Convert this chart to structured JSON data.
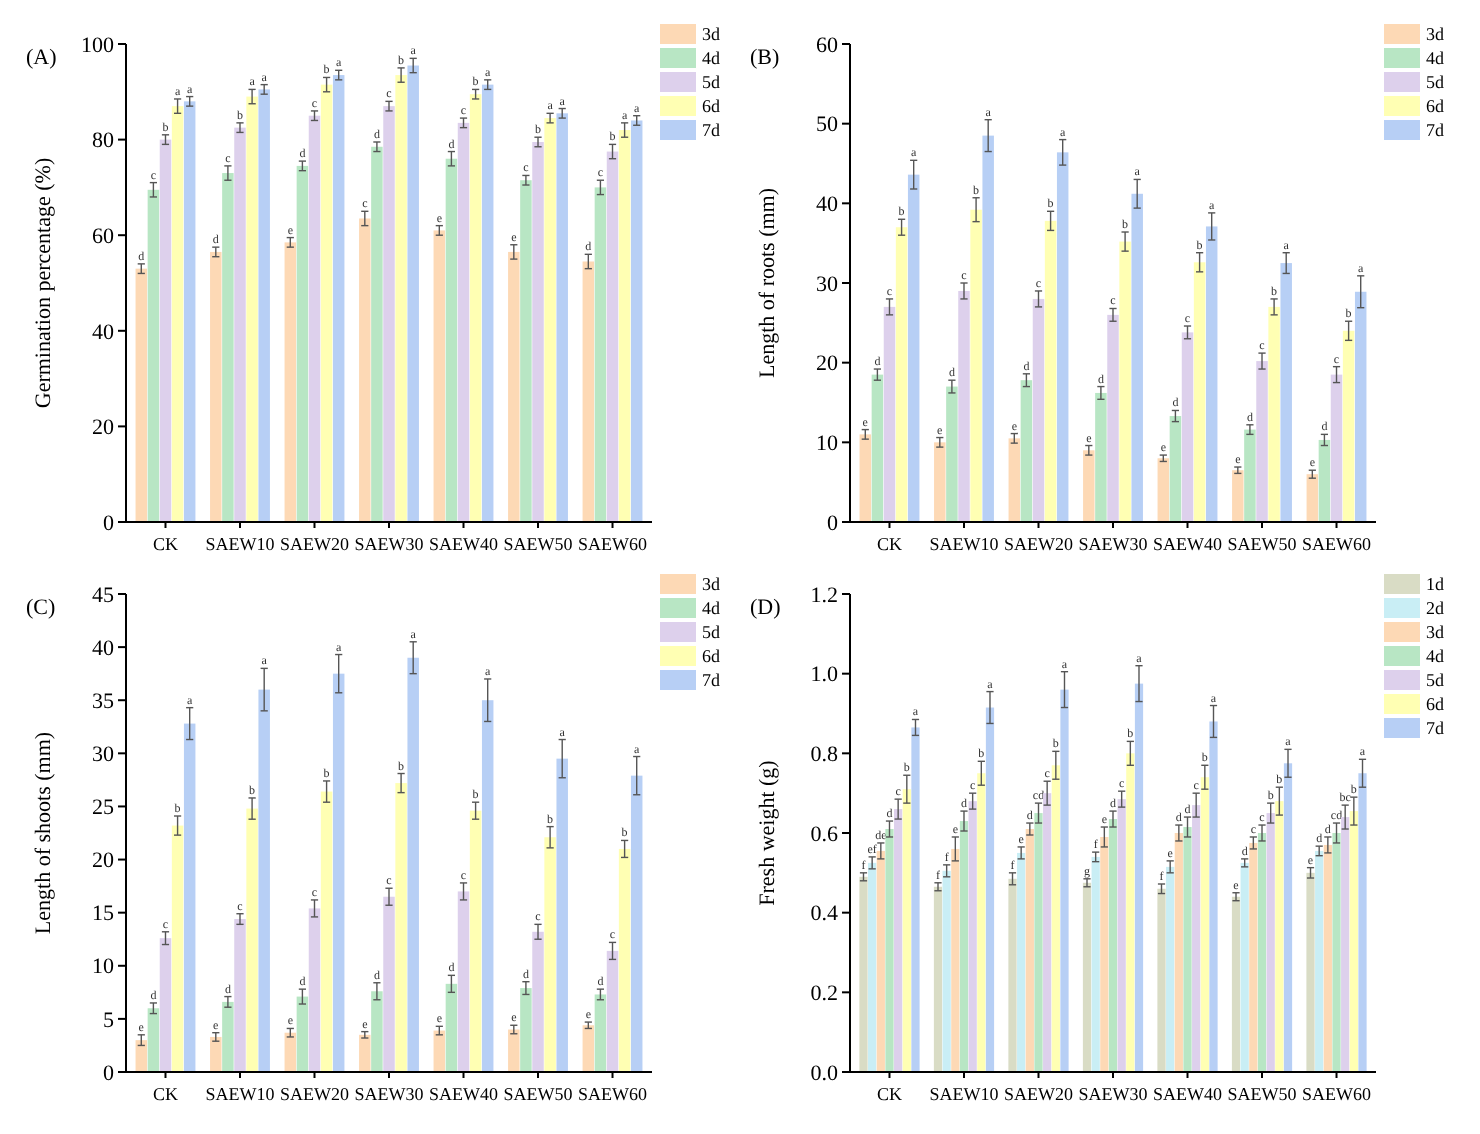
{
  "chart_data": [
    {
      "type": "bar",
      "title": "(A)",
      "ylabel": "Germination percentage (%)",
      "categories": [
        "CK",
        "SAEW10",
        "SAEW20",
        "SAEW30",
        "SAEW40",
        "SAEW50",
        "SAEW60"
      ],
      "ylim": [
        0,
        100
      ],
      "yticks": [
        0,
        20,
        40,
        60,
        80,
        100
      ],
      "legend": "top right",
      "series": [
        {
          "name": "3d",
          "color": "#fdd9b5",
          "values": [
            53,
            56.5,
            58.5,
            63.5,
            61,
            56.5,
            54.5
          ],
          "errors": [
            1,
            1,
            1,
            1.5,
            1,
            1.5,
            1.5
          ],
          "value_labels": [
            "d",
            "d",
            "e",
            "c",
            "e",
            "e",
            "d"
          ]
        },
        {
          "name": "4d",
          "color": "#b8e6c4",
          "values": [
            69.5,
            73,
            74.5,
            78.5,
            76,
            71.5,
            70
          ],
          "errors": [
            1.5,
            1.5,
            1,
            1,
            1.5,
            1,
            1.5
          ],
          "value_labels": [
            "c",
            "c",
            "d",
            "d",
            "d",
            "c",
            "c"
          ]
        },
        {
          "name": "5d",
          "color": "#ddd0ec",
          "values": [
            80,
            82.5,
            85,
            87,
            83.5,
            79.5,
            77.5
          ],
          "errors": [
            1,
            1,
            1,
            1,
            1,
            1,
            1.5
          ],
          "value_labels": [
            "b",
            "b",
            "c",
            "c",
            "c",
            "b",
            "b"
          ]
        },
        {
          "name": "6d",
          "color": "#ffffb3",
          "values": [
            87,
            89,
            91.5,
            93.5,
            89.5,
            84.5,
            82
          ],
          "errors": [
            1.5,
            1.5,
            1.5,
            1.5,
            1,
            1,
            1.5
          ],
          "value_labels": [
            "a",
            "a",
            "b",
            "b",
            "b",
            "a",
            "a"
          ]
        },
        {
          "name": "7d",
          "color": "#b7cff5",
          "values": [
            88,
            90.5,
            93.5,
            95.5,
            91.5,
            85.5,
            84
          ],
          "errors": [
            1,
            1,
            1,
            1.5,
            1,
            1,
            1
          ],
          "value_labels": [
            "a",
            "a",
            "a",
            "a",
            "a",
            "a",
            "a"
          ]
        }
      ]
    },
    {
      "type": "bar",
      "title": "(B)",
      "ylabel": "Length of roots (mm)",
      "categories": [
        "CK",
        "SAEW10",
        "SAEW20",
        "SAEW30",
        "SAEW40",
        "SAEW50",
        "SAEW60"
      ],
      "ylim": [
        0,
        60
      ],
      "yticks": [
        0,
        10,
        20,
        30,
        40,
        50,
        60
      ],
      "legend": "top right",
      "series": [
        {
          "name": "3d",
          "color": "#fdd9b5",
          "values": [
            11,
            10,
            10.5,
            9,
            8,
            6.5,
            6
          ],
          "errors": [
            0.6,
            0.6,
            0.6,
            0.6,
            0.4,
            0.4,
            0.5
          ],
          "value_labels": [
            "e",
            "e",
            "e",
            "e",
            "e",
            "e",
            "e"
          ]
        },
        {
          "name": "4d",
          "color": "#b8e6c4",
          "values": [
            18.5,
            17,
            17.8,
            16.2,
            13.3,
            11.6,
            10.3
          ],
          "errors": [
            0.7,
            0.8,
            0.8,
            0.8,
            0.7,
            0.6,
            0.7
          ],
          "value_labels": [
            "d",
            "d",
            "d",
            "d",
            "d",
            "d",
            "d"
          ]
        },
        {
          "name": "5d",
          "color": "#ddd0ec",
          "values": [
            27,
            29,
            28,
            26,
            23.8,
            20.2,
            18.5
          ],
          "errors": [
            1,
            1,
            1,
            0.8,
            0.8,
            1,
            1
          ],
          "value_labels": [
            "c",
            "c",
            "c",
            "c",
            "c",
            "c",
            "c"
          ]
        },
        {
          "name": "6d",
          "color": "#ffffb3",
          "values": [
            37,
            39.2,
            37.8,
            35.2,
            32.6,
            27,
            24
          ],
          "errors": [
            1,
            1.5,
            1.2,
            1.2,
            1.2,
            1,
            1.2
          ],
          "value_labels": [
            "b",
            "b",
            "b",
            "b",
            "b",
            "b",
            "b"
          ]
        },
        {
          "name": "7d",
          "color": "#b7cff5",
          "values": [
            43.6,
            48.5,
            46.4,
            41.2,
            37.1,
            32.5,
            28.9
          ],
          "errors": [
            1.8,
            2,
            1.6,
            1.8,
            1.7,
            1.3,
            2
          ],
          "value_labels": [
            "a",
            "a",
            "a",
            "a",
            "a",
            "a",
            "a"
          ]
        }
      ]
    },
    {
      "type": "bar",
      "title": "(C)",
      "ylabel": "Length of shoots (mm)",
      "categories": [
        "CK",
        "SAEW10",
        "SAEW20",
        "SAEW30",
        "SAEW40",
        "SAEW50",
        "SAEW60"
      ],
      "ylim": [
        0,
        45
      ],
      "yticks": [
        0,
        5,
        10,
        15,
        20,
        25,
        30,
        35,
        40,
        45
      ],
      "legend": "top right",
      "series": [
        {
          "name": "3d",
          "color": "#fdd9b5",
          "values": [
            3,
            3.3,
            3.7,
            3.5,
            3.9,
            4,
            4.4
          ],
          "errors": [
            0.5,
            0.4,
            0.4,
            0.3,
            0.4,
            0.4,
            0.3
          ],
          "value_labels": [
            "e",
            "e",
            "e",
            "e",
            "e",
            "e",
            "e"
          ]
        },
        {
          "name": "4d",
          "color": "#b8e6c4",
          "values": [
            6,
            6.6,
            7.1,
            7.6,
            8.3,
            7.9,
            7.3
          ],
          "errors": [
            0.5,
            0.5,
            0.7,
            0.8,
            0.8,
            0.6,
            0.5
          ],
          "value_labels": [
            "d",
            "d",
            "d",
            "d",
            "d",
            "d",
            "d"
          ]
        },
        {
          "name": "5d",
          "color": "#ddd0ec",
          "values": [
            12.6,
            14.4,
            15.4,
            16.5,
            17,
            13.2,
            11.4
          ],
          "errors": [
            0.6,
            0.5,
            0.8,
            0.8,
            0.8,
            0.7,
            0.8
          ],
          "value_labels": [
            "c",
            "c",
            "c",
            "c",
            "c",
            "c",
            "c"
          ]
        },
        {
          "name": "6d",
          "color": "#ffffb3",
          "values": [
            23.2,
            24.8,
            26.4,
            27.2,
            24.6,
            22.1,
            21
          ],
          "errors": [
            0.9,
            1,
            1,
            0.9,
            0.8,
            1,
            0.8
          ],
          "value_labels": [
            "b",
            "b",
            "b",
            "b",
            "b",
            "b",
            "b"
          ]
        },
        {
          "name": "7d",
          "color": "#b7cff5",
          "values": [
            32.8,
            36,
            37.5,
            39,
            35,
            29.5,
            27.9
          ],
          "errors": [
            1.5,
            2,
            1.8,
            1.5,
            2,
            1.8,
            1.8
          ],
          "value_labels": [
            "a",
            "a",
            "a",
            "a",
            "a",
            "a",
            "a"
          ]
        }
      ]
    },
    {
      "type": "bar",
      "title": "(D)",
      "ylabel": "Fresh weight (g)",
      "categories": [
        "CK",
        "SAEW10",
        "SAEW20",
        "SAEW30",
        "SAEW40",
        "SAEW50",
        "SAEW60"
      ],
      "ylim": [
        0,
        1.2
      ],
      "yticks": [
        {
          "value": 0,
          "label": "0.0"
        },
        0.2,
        0.4,
        0.6,
        0.8,
        {
          "value": 1,
          "label": "1.0"
        },
        1.2
      ],
      "legend": "top right",
      "series": [
        {
          "name": "1d",
          "color": "#d9dcc5",
          "values": [
            0.49,
            0.465,
            0.485,
            0.475,
            0.46,
            0.44,
            0.5
          ],
          "errors": [
            0.01,
            0.01,
            0.015,
            0.01,
            0.012,
            0.01,
            0.013
          ],
          "value_labels": [
            "f",
            "f",
            "f",
            "g",
            "f",
            "e",
            "e"
          ]
        },
        {
          "name": "2d",
          "color": "#c9eef5",
          "values": [
            0.525,
            0.505,
            0.55,
            0.54,
            0.515,
            0.525,
            0.555
          ],
          "errors": [
            0.015,
            0.015,
            0.015,
            0.012,
            0.015,
            0.01,
            0.012
          ],
          "value_labels": [
            "ef",
            "f",
            "e",
            "f",
            "e",
            "d",
            "d"
          ]
        },
        {
          "name": "3d",
          "color": "#fdd9b5",
          "values": [
            0.555,
            0.56,
            0.61,
            0.59,
            0.6,
            0.575,
            0.57
          ],
          "errors": [
            0.02,
            0.03,
            0.015,
            0.025,
            0.02,
            0.015,
            0.02
          ],
          "value_labels": [
            "de",
            "e",
            "d",
            "e",
            "d",
            "c",
            "d"
          ]
        },
        {
          "name": "4d",
          "color": "#b8e6c4",
          "values": [
            0.61,
            0.63,
            0.65,
            0.635,
            0.615,
            0.6,
            0.6
          ],
          "errors": [
            0.02,
            0.025,
            0.025,
            0.02,
            0.025,
            0.02,
            0.025
          ],
          "value_labels": [
            "d",
            "d",
            "cd",
            "d",
            "d",
            "c",
            "cd"
          ]
        },
        {
          "name": "5d",
          "color": "#ddd0ec",
          "values": [
            0.66,
            0.68,
            0.7,
            0.685,
            0.67,
            0.65,
            0.64
          ],
          "errors": [
            0.025,
            0.02,
            0.03,
            0.02,
            0.03,
            0.025,
            0.03
          ],
          "value_labels": [
            "c",
            "c",
            "c",
            "c",
            "c",
            "b",
            "bc"
          ]
        },
        {
          "name": "6d",
          "color": "#ffffb3",
          "values": [
            0.71,
            0.75,
            0.77,
            0.8,
            0.74,
            0.68,
            0.655
          ],
          "errors": [
            0.035,
            0.03,
            0.035,
            0.03,
            0.03,
            0.035,
            0.035
          ],
          "value_labels": [
            "b",
            "b",
            "b",
            "b",
            "b",
            "b",
            "b"
          ]
        },
        {
          "name": "7d",
          "color": "#b7cff5",
          "values": [
            0.865,
            0.915,
            0.96,
            0.975,
            0.88,
            0.775,
            0.75
          ],
          "errors": [
            0.02,
            0.04,
            0.045,
            0.045,
            0.04,
            0.035,
            0.035
          ],
          "value_labels": [
            "a",
            "a",
            "a",
            "a",
            "a",
            "a",
            "a"
          ]
        }
      ]
    }
  ]
}
